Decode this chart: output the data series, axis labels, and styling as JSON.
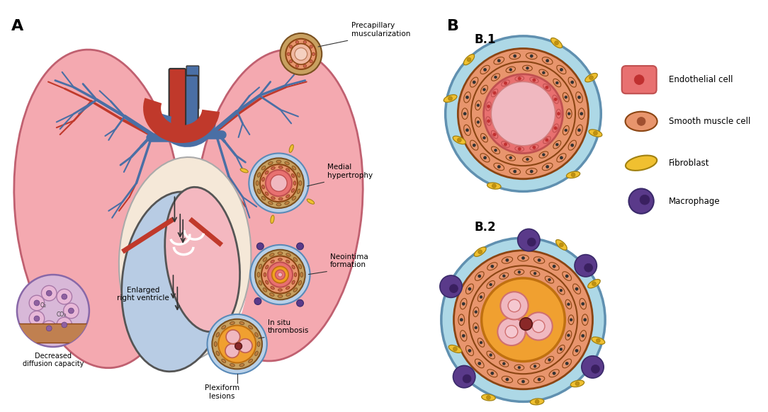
{
  "title_A": "A",
  "title_B": "B",
  "title_B1": "B.1",
  "title_B2": "B.2",
  "bg_color": "#ffffff",
  "lung_color": "#f4a9b0",
  "lung_edge": "#c06070",
  "heart_right_color": "#b8cce4",
  "heart_left_color": "#f4b8c0",
  "aorta_color": "#c0392b",
  "pulm_artery_color": "#4a6fa5",
  "vessel_b1_outer": "#add8e6",
  "vessel_b1_lumen": "#f0b8c0",
  "vessel_b2_outer": "#add8e6",
  "vessel_b2_orange": "#f0a030",
  "vessel_b2_lumen": "#f0b8c0",
  "fibroblast_color": "#f0c030",
  "macrophage_color": "#5a3a8a",
  "label_precapillary": "Precapillary\nmuscularization",
  "label_medial": "Medial\nhypertrophy",
  "label_neointima": "Neointima\nformation",
  "label_plexiform": "Plexiform\nlesions",
  "label_insitu": "In situ\nthrombosis",
  "label_enlarged": "Enlarged\nright ventricle",
  "label_decreased": "Decreased\ndiffusion capacity"
}
